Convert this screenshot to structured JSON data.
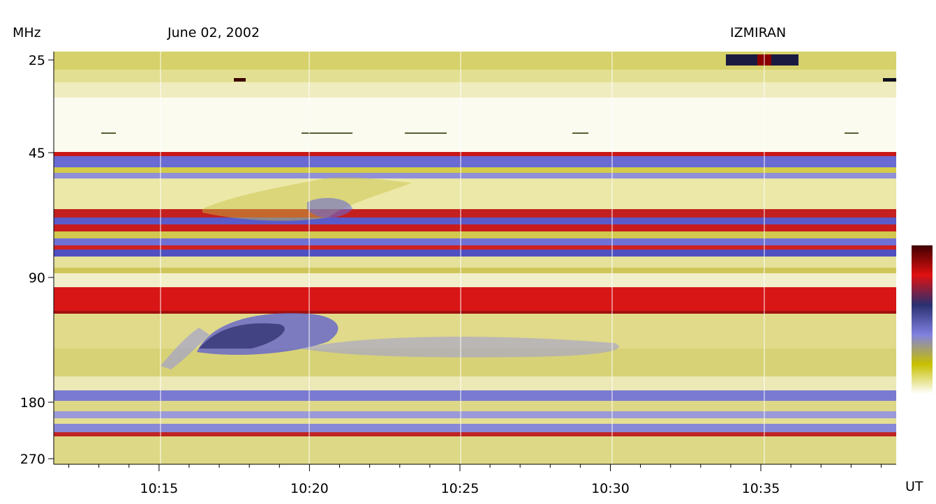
{
  "header": {
    "unit_label": "MHz",
    "date": "June 02, 2002",
    "observatory": "IZMIRAN"
  },
  "x_axis_unit": "UT",
  "chart_data": {
    "type": "heatmap",
    "title": "June 02, 2002",
    "source": "IZMIRAN",
    "xlabel": "UT",
    "ylabel": "MHz",
    "x_ticks": [
      "10:15",
      "10:20",
      "10:25",
      "10:30",
      "10:35"
    ],
    "y_ticks": [
      "25",
      "45",
      "90",
      "180",
      "270"
    ],
    "xlim": [
      "10:11:30",
      "10:39:30"
    ],
    "ylim": [
      25,
      270
    ],
    "y_scale": "log",
    "colorbar": true,
    "colormap": [
      "#ffffff",
      "#c8c000",
      "#8080e0",
      "#2a3070",
      "#e01010",
      "#400000"
    ]
  }
}
